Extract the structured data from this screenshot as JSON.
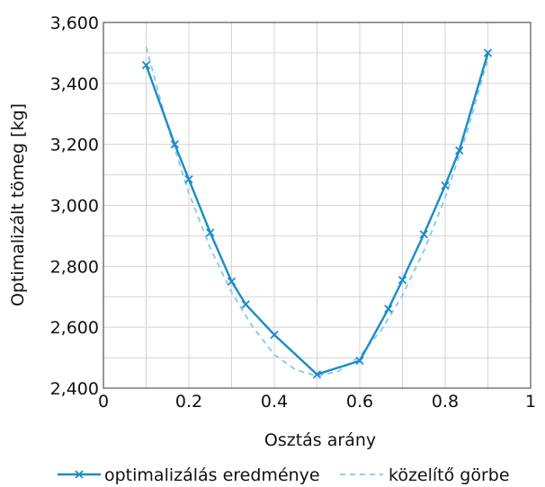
{
  "chart_data": {
    "type": "line",
    "xlabel": "Osztás arány",
    "ylabel": "Optimalizált tömeg [kg]",
    "xlim": [
      0,
      1
    ],
    "ylim": [
      2400,
      3600
    ],
    "x_ticks": [
      {
        "v": 0,
        "label": "0"
      },
      {
        "v": 0.2,
        "label": "0.2"
      },
      {
        "v": 0.4,
        "label": "0.4"
      },
      {
        "v": 0.6,
        "label": "0.6"
      },
      {
        "v": 0.8,
        "label": "0.8"
      },
      {
        "v": 1,
        "label": "1"
      }
    ],
    "y_ticks": [
      {
        "v": 2400,
        "label": "2,400"
      },
      {
        "v": 2600,
        "label": "2,600"
      },
      {
        "v": 2800,
        "label": "2,800"
      },
      {
        "v": 3000,
        "label": "3,000"
      },
      {
        "v": 3200,
        "label": "3,200"
      },
      {
        "v": 3400,
        "label": "3,400"
      },
      {
        "v": 3600,
        "label": "3,600"
      }
    ],
    "grid": true,
    "legend_position": "bottom",
    "series": [
      {
        "name": "optimalizálás eredménye",
        "style": "solid-x-markers",
        "color": "#1a8cc7",
        "x": [
          0.1,
          0.167,
          0.2,
          0.25,
          0.3,
          0.333,
          0.4,
          0.5,
          0.6,
          0.667,
          0.7,
          0.75,
          0.8,
          0.833,
          0.9
        ],
        "y": [
          3460,
          3200,
          3085,
          2910,
          2750,
          2675,
          2575,
          2445,
          2490,
          2660,
          2755,
          2905,
          3065,
          3180,
          3500
        ]
      },
      {
        "name": "közelítő görbe",
        "style": "dashed",
        "color": "#7fcbe8",
        "x": [
          0.1,
          0.15,
          0.2,
          0.25,
          0.3,
          0.35,
          0.4,
          0.45,
          0.5,
          0.55,
          0.6,
          0.65,
          0.7,
          0.75,
          0.8,
          0.85,
          0.9
        ],
        "y": [
          3520,
          3260,
          3040,
          2860,
          2715,
          2600,
          2510,
          2460,
          2440,
          2455,
          2505,
          2590,
          2705,
          2850,
          3025,
          3235,
          3480
        ]
      }
    ]
  }
}
